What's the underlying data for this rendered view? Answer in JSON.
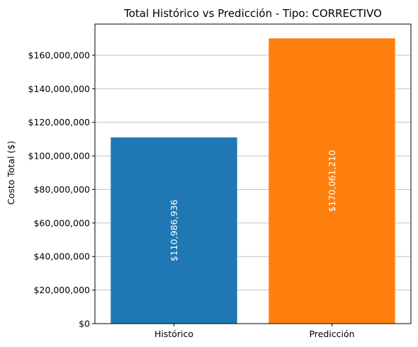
{
  "chart_data": {
    "type": "bar",
    "title": "Total Histórico vs Predicción - Tipo: CORRECTIVO",
    "xlabel": "",
    "ylabel": "Costo Total ($)",
    "categories": [
      "Histórico",
      "Predicción"
    ],
    "values": [
      110986936,
      170061210
    ],
    "value_labels": [
      "$110,986,936",
      "$170,061,210"
    ],
    "colors": [
      "#1f77b4",
      "#ff7f0e"
    ],
    "ylim": [
      0,
      178564270
    ],
    "yticks": [
      0,
      20000000,
      40000000,
      60000000,
      80000000,
      100000000,
      120000000,
      140000000,
      160000000
    ],
    "ytick_labels": [
      "$0",
      "$20,000,000",
      "$40,000,000",
      "$60,000,000",
      "$80,000,000",
      "$100,000,000",
      "$120,000,000",
      "$140,000,000",
      "$160,000,000"
    ],
    "grid": "y",
    "legend": "none"
  }
}
